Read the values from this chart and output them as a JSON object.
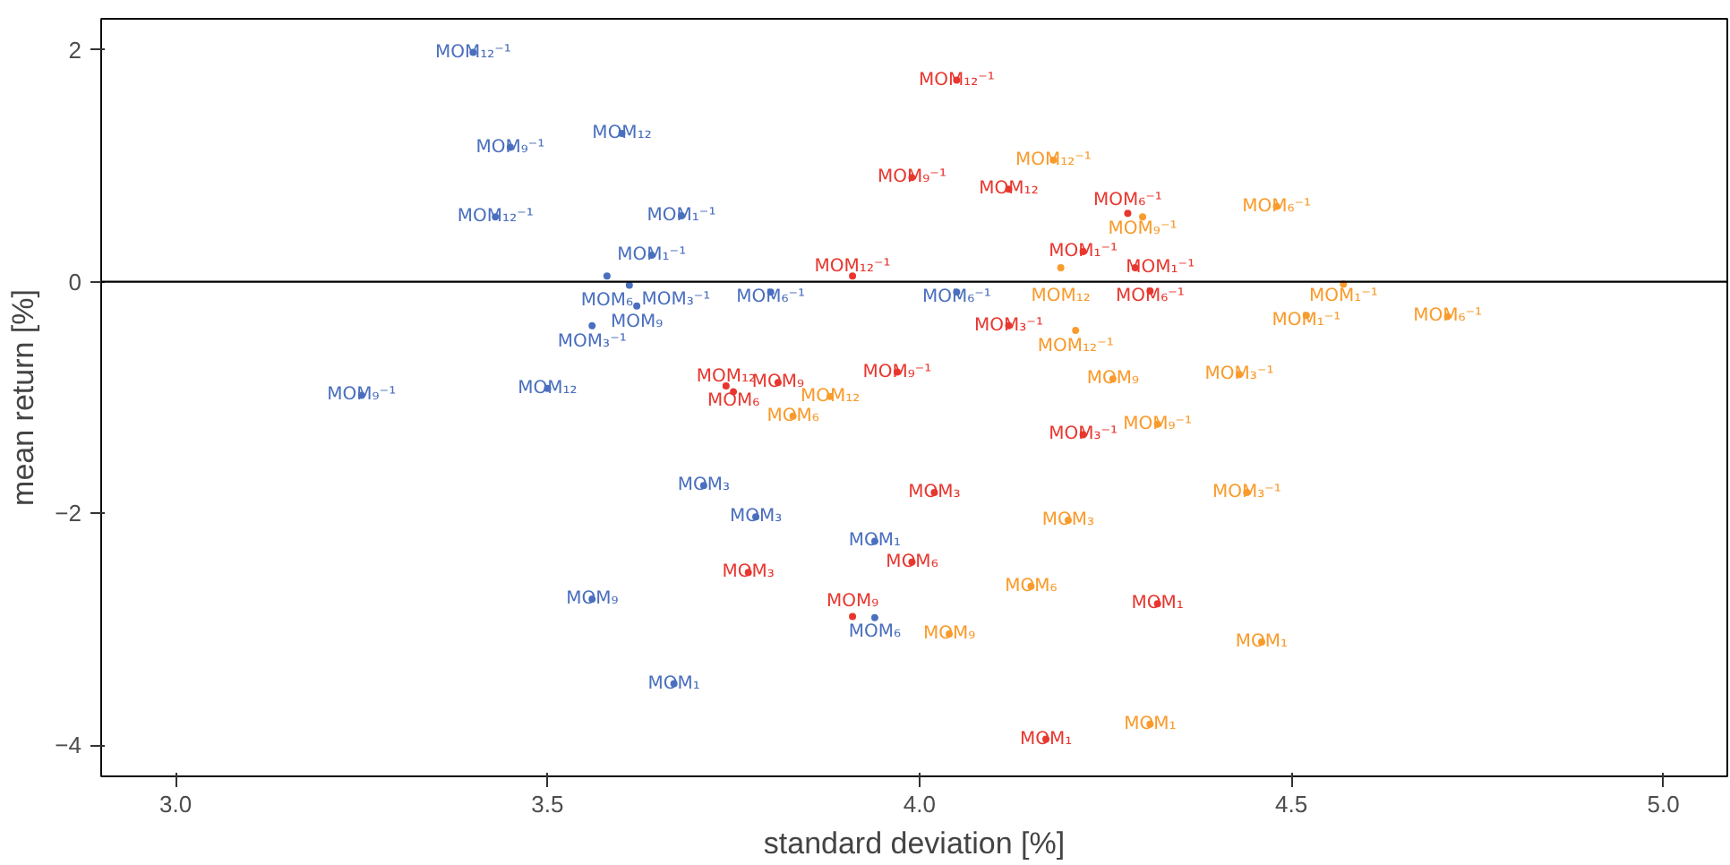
{
  "chart_data": {
    "type": "scatter",
    "xlabel": "standard deviation [%]",
    "ylabel": "mean return [%]",
    "marker": "circle",
    "grid": false,
    "xlim": [
      2.9,
      5.086
    ],
    "ylim": [
      -4.27,
      2.27
    ],
    "xticks": [
      {
        "value": 3,
        "label": "3.0"
      },
      {
        "value": 3.5,
        "label": "3.5"
      },
      {
        "value": 4,
        "label": "4.0"
      },
      {
        "value": 4.5,
        "label": "4.5"
      },
      {
        "value": 5,
        "label": "5.0"
      }
    ],
    "yticks": [
      {
        "value": -4,
        "label": "−4"
      },
      {
        "value": -2,
        "label": "−2"
      },
      0,
      2
    ],
    "ref_lines": [
      {
        "axis": "y",
        "value": 0,
        "color": "#000000"
      }
    ],
    "series": [
      {
        "color": "#4a6fbe",
        "x": [
          3.4,
          3.45,
          3.6,
          3.43,
          3.68,
          3.64,
          3.58,
          3.61,
          3.62,
          3.56,
          3.25,
          3.5,
          3.8,
          4.05,
          3.71,
          3.78,
          3.94,
          3.56,
          3.67,
          3.94
        ],
        "values": [
          1.98,
          1.16,
          1.28,
          0.56,
          0.57,
          0.23,
          0.05,
          -0.03,
          -0.21,
          -0.38,
          -0.98,
          -0.92,
          -0.09,
          -0.09,
          -1.76,
          -2.03,
          -2.24,
          -2.74,
          -3.47,
          -2.9
        ],
        "value_labels": [
          "MOM₁₂⁻¹",
          "MOM₉⁻¹",
          "MOM₁₂",
          "MOM₁₂⁻¹",
          "MOM₁⁻¹",
          "MOM₁⁻¹",
          "MOM₆",
          "MOM₃⁻¹",
          "MOM₉",
          "MOM₃⁻¹",
          "MOM₉⁻¹",
          "MOM₁₂",
          "MOM₆⁻¹",
          "MOM₆⁻¹",
          "MOM₃",
          "MOM₃",
          "MOM₁",
          "MOM₉",
          "MOM₁",
          "MOM₆"
        ]
      },
      {
        "color": "#e8372f",
        "x": [
          4.05,
          3.99,
          4.12,
          4.28,
          4.22,
          4.29,
          4.31,
          3.91,
          4.12,
          3.97,
          3.74,
          3.75,
          4.22,
          3.81,
          4.02,
          3.77,
          3.99,
          4.32,
          4.17,
          3.91
        ],
        "values": [
          1.74,
          0.9,
          0.8,
          0.59,
          0.26,
          0.12,
          -0.08,
          0.05,
          -0.38,
          -0.78,
          -0.9,
          -0.95,
          -1.32,
          -0.87,
          -1.82,
          -2.51,
          -2.42,
          -2.78,
          -3.95,
          -2.89
        ],
        "value_labels": [
          "MOM₁₂⁻¹",
          "MOM₉⁻¹",
          "MOM₁₂",
          "MOM₆⁻¹",
          "MOM₁⁻¹",
          "MOM₁⁻¹",
          "MOM₆⁻¹",
          "MOM₁₂⁻¹",
          "MOM₃⁻¹",
          "MOM₉⁻¹",
          "MOM₁₂",
          "MOM₆",
          "MOM₃⁻¹",
          "MOM₉",
          "MOM₃",
          "MOM₃",
          "MOM₆",
          "MOM₁",
          "MOM₁",
          "MOM₉"
        ]
      },
      {
        "color": "#f99b2c",
        "x": [
          4.18,
          4.3,
          4.48,
          4.19,
          4.57,
          4.52,
          4.71,
          4.21,
          4.26,
          4.43,
          4.32,
          3.88,
          3.83,
          4.44,
          4.2,
          4.15,
          4.04,
          4.46,
          4.31
        ],
        "values": [
          1.05,
          0.56,
          0.65,
          0.12,
          -0.02,
          -0.29,
          -0.3,
          -0.42,
          -0.84,
          -0.8,
          -1.23,
          -0.99,
          -1.16,
          -1.82,
          -2.06,
          -2.63,
          -3.04,
          -3.11,
          -3.82
        ],
        "value_labels": [
          "MOM₁₂⁻¹",
          "MOM₉⁻¹",
          "MOM₆⁻¹",
          "MOM₁₂",
          "MOM₁⁻¹",
          "MOM₁⁻¹",
          "MOM₆⁻¹",
          "MOM₁₂⁻¹",
          "MOM₉",
          "MOM₃⁻¹",
          "MOM₉⁻¹",
          "MOM₁₂",
          "MOM₆",
          "MOM₃⁻¹",
          "MOM₃",
          "MOM₆",
          "MOM₉",
          "MOM₁",
          "MOM₁"
        ]
      }
    ]
  }
}
